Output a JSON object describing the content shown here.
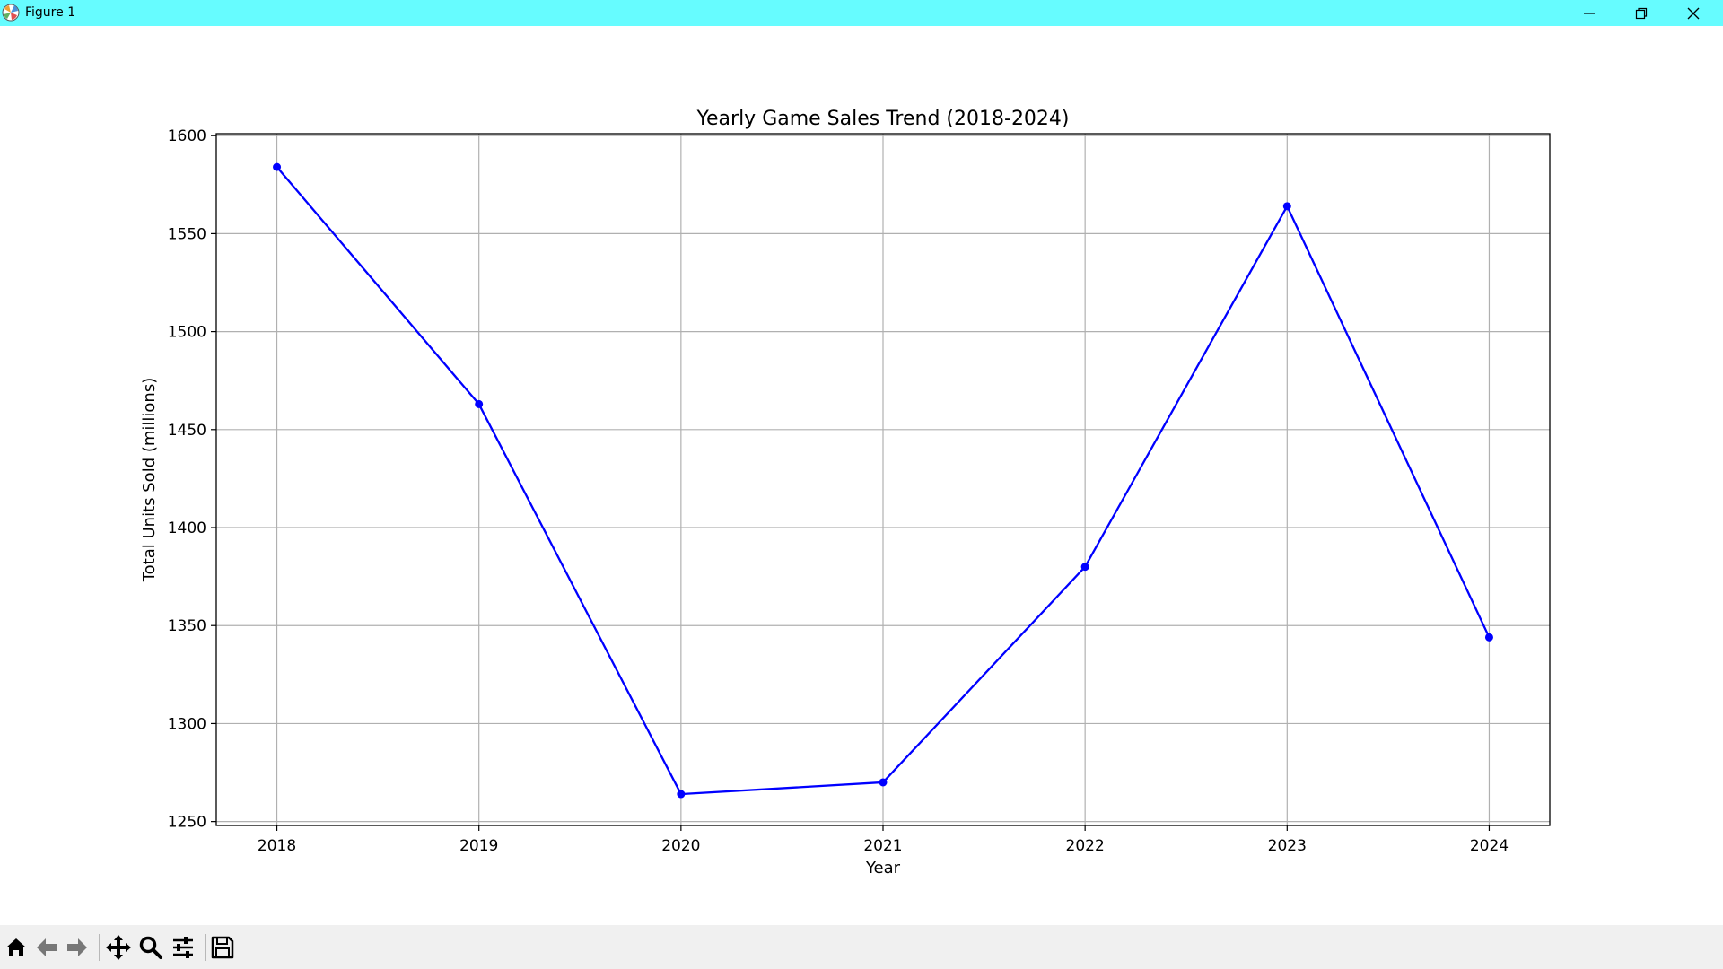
{
  "window": {
    "title": "Figure 1",
    "titlebar_color": "#66fcff"
  },
  "controls": {
    "minimize_icon": "minimize-icon",
    "restore_icon": "restore-icon",
    "close_icon": "close-icon"
  },
  "toolbar": {
    "items": [
      {
        "name": "home-button",
        "icon": "home-icon"
      },
      {
        "name": "back-button",
        "icon": "arrow-left-icon"
      },
      {
        "name": "forward-button",
        "icon": "arrow-right-icon"
      },
      {
        "name": "pan-button",
        "icon": "move-icon"
      },
      {
        "name": "zoom-button",
        "icon": "magnifier-icon"
      },
      {
        "name": "configure-subplots-button",
        "icon": "sliders-icon"
      },
      {
        "name": "save-button",
        "icon": "floppy-disk-icon"
      }
    ]
  },
  "chart_data": {
    "type": "line",
    "title": "Yearly Game Sales Trend (2018-2024)",
    "xlabel": "Year",
    "ylabel": "Total Units Sold (millions)",
    "x": [
      "2018",
      "2019",
      "2020",
      "2021",
      "2022",
      "2023",
      "2024"
    ],
    "series": [
      {
        "values": [
          1584,
          1463,
          1264,
          1270,
          1380,
          1564,
          1344
        ],
        "color": "#0000ff",
        "marker": "circle"
      }
    ],
    "xlim": [
      2017.7,
      2024.3
    ],
    "ylim": [
      1248,
      1601
    ],
    "yticks": [
      1250,
      1300,
      1350,
      1400,
      1450,
      1500,
      1550,
      1600
    ],
    "ytick_labels": [
      "1250",
      "1300",
      "1350",
      "1400",
      "1450",
      "1500",
      "1550",
      "1600"
    ],
    "grid": true,
    "legend": false
  }
}
